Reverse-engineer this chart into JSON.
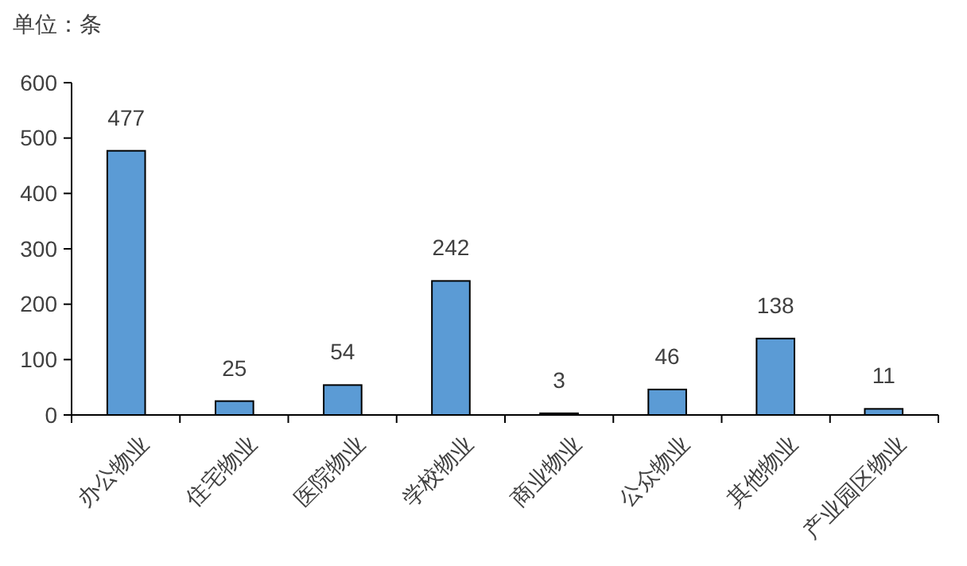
{
  "chart_data": {
    "type": "bar",
    "ylabel": "单位：条",
    "categories": [
      "办公物业",
      "住宅物业",
      "医院物业",
      "学校物业",
      "商业物业",
      "公众物业",
      "其他物业",
      "产业园区物业"
    ],
    "values": [
      477,
      25,
      54,
      242,
      3,
      46,
      138,
      11
    ],
    "color": "#5b9bd5",
    "ylim": [
      0,
      600
    ],
    "yticks": [
      0,
      100,
      200,
      300,
      400,
      500,
      600
    ],
    "grid": false,
    "data_labels": true
  }
}
